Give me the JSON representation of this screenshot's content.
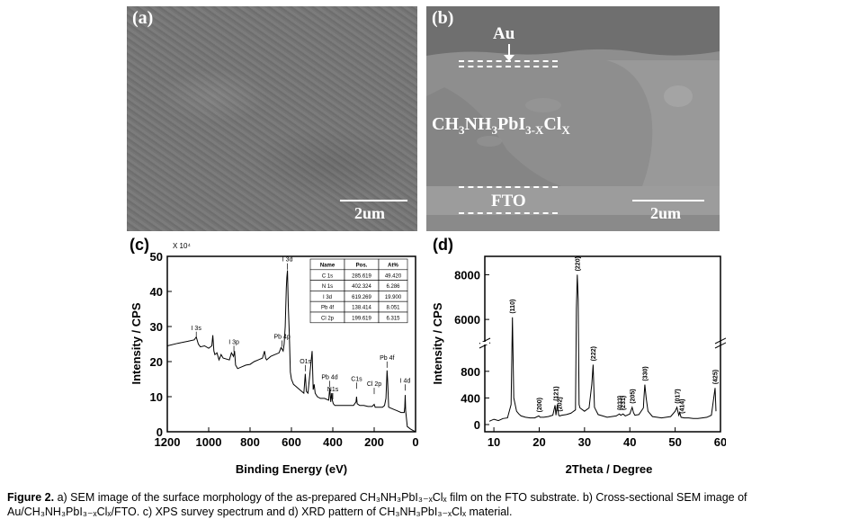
{
  "panel_a": {
    "label": "(a)",
    "scale": "2um"
  },
  "panel_b": {
    "label": "(b)",
    "scale": "2um",
    "au_label": "Au",
    "film_main": "CH",
    "film_sub1": "3",
    "film_mid": "NH",
    "film_sub2": "3",
    "film_mid2": "PbI",
    "film_sub3": "3-X",
    "film_mid3": "Cl",
    "film_sub4": "X",
    "fto_label": "FTO"
  },
  "panel_c": {
    "label": "(c)",
    "multiplier": "X 10⁴"
  },
  "panel_d": {
    "label": "(d)"
  },
  "xps_table": {
    "headers": [
      "Name",
      "Pos.",
      "At%"
    ],
    "rows": [
      [
        "C 1s",
        "285.619",
        "49.420"
      ],
      [
        "N 1s",
        "402.324",
        "6.286"
      ],
      [
        "I 3d",
        "619.269",
        "19.900"
      ],
      [
        "Pb 4f",
        "138.414",
        "8.051"
      ],
      [
        "Cl 2p",
        "199.619",
        "6.315"
      ]
    ]
  },
  "caption": {
    "lead": "Figure 2.",
    "text": " a) SEM image of the surface morphology of the as-prepared CH₃NH₃PbI₃₋ₓClₓ film on the FTO substrate. b) Cross-sectional SEM image of Au/CH₃NH₃PbI₃₋ₓClₓ/FTO. c) XPS survey spectrum and d) XRD pattern of CH₃NH₃PbI₃₋ₓClₓ material."
  },
  "chart_data": [
    {
      "type": "line",
      "panel": "(c)",
      "xlabel": "Binding Energy (eV)",
      "ylabel": "Intensity / CPS",
      "xlim": [
        1200,
        0
      ],
      "ylim": [
        0,
        50
      ],
      "x_reversed": true,
      "xticks": [
        1200,
        1000,
        800,
        600,
        400,
        200,
        0
      ],
      "yticks": [
        0,
        10,
        20,
        30,
        40,
        50
      ],
      "series": [
        {
          "x": [
            1200,
            1150,
            1100,
            1070,
            1060,
            1050,
            1040,
            1020,
            1000,
            985,
            980,
            975,
            970,
            960,
            950,
            940,
            930,
            900,
            890,
            880,
            875,
            870,
            860,
            840,
            820,
            800,
            780,
            760,
            740,
            730,
            725,
            720,
            700,
            680,
            660,
            650,
            640,
            635,
            630,
            625,
            622,
            619,
            615,
            610,
            605,
            600,
            590,
            580,
            560,
            540,
            533,
            528,
            520,
            510,
            500,
            495,
            490,
            485,
            475,
            460,
            440,
            420,
            415,
            410,
            405,
            402,
            398,
            390,
            380,
            360,
            340,
            320,
            300,
            288,
            285,
            282,
            270,
            250,
            230,
            210,
            200,
            195,
            180,
            160,
            150,
            143,
            140,
            138,
            135,
            130,
            110,
            90,
            70,
            55,
            52,
            50,
            48,
            40,
            25,
            10,
            0
          ],
          "y": [
            24.5,
            25.2,
            25.8,
            26.2,
            27.0,
            25.0,
            24.2,
            24.5,
            23.8,
            24.5,
            27.5,
            23.0,
            22.0,
            22.5,
            20.5,
            22.0,
            21.0,
            20.5,
            22.5,
            21.5,
            23.0,
            19.0,
            18.0,
            18.5,
            19.0,
            19.2,
            20.0,
            20.5,
            21.0,
            23.0,
            21.0,
            20.5,
            21.5,
            22.0,
            22.5,
            24.0,
            23.0,
            25.0,
            30.0,
            41.0,
            44.0,
            46.0,
            36.0,
            27.5,
            17.0,
            15.0,
            13.5,
            13.0,
            12.0,
            11.0,
            16.5,
            11.5,
            11.0,
            17.0,
            23.0,
            12.0,
            13.5,
            11.0,
            10.0,
            9.5,
            9.5,
            9.0,
            12.5,
            8.5,
            11.0,
            9.0,
            8.0,
            7.5,
            7.5,
            7.5,
            7.5,
            7.5,
            7.5,
            8.5,
            10.0,
            8.0,
            7.5,
            7.5,
            7.2,
            7.2,
            7.8,
            7.0,
            7.0,
            7.0,
            7.5,
            9.5,
            14.0,
            17.5,
            15.0,
            7.0,
            6.5,
            6.0,
            5.5,
            5.5,
            7.0,
            10.5,
            6.0,
            1.5,
            0.8,
            0.3,
            0.0
          ]
        }
      ],
      "annotations": [
        {
          "text": "I 3s",
          "x": 1060,
          "y": 27.5
        },
        {
          "text": "I 3p",
          "x": 878,
          "y": 23.5
        },
        {
          "text": "Pb 4p",
          "x": 645,
          "y": 25
        },
        {
          "text": "I 3d",
          "x": 619,
          "y": 47
        },
        {
          "text": "O1s",
          "x": 532,
          "y": 18
        },
        {
          "text": "Pb 4d",
          "x": 415,
          "y": 13.5
        },
        {
          "text": "N1s",
          "x": 400,
          "y": 10
        },
        {
          "text": "C1s",
          "x": 285,
          "y": 13
        },
        {
          "text": "Cl 2p",
          "x": 200,
          "y": 11.5
        },
        {
          "text": "Pb 4f",
          "x": 138,
          "y": 19
        },
        {
          "text": "I 4d",
          "x": 50,
          "y": 12.5
        }
      ]
    },
    {
      "type": "line",
      "panel": "(d)",
      "xlabel": "2Theta / Degree",
      "ylabel": "Intensity / CPS",
      "xlim": [
        8,
        60
      ],
      "xticks": [
        10,
        20,
        30,
        40,
        50,
        60
      ],
      "yticks": [
        0,
        400,
        800,
        6000,
        8000
      ],
      "broken_y_axis": true,
      "lower_ylim": [
        0,
        1000
      ],
      "upper_ylim": [
        5000,
        8500
      ],
      "series": [
        {
          "x": [
            9,
            10,
            11,
            12,
            13,
            13.8,
            14.1,
            14.4,
            15,
            15.5,
            16,
            17,
            18,
            19,
            19.9,
            20.2,
            21,
            22,
            23,
            23.5,
            23.7,
            24,
            24.3,
            24.5,
            25,
            26,
            27,
            28,
            28.2,
            28.4,
            28.6,
            28.8,
            29,
            30,
            31,
            31.6,
            31.9,
            32.2,
            33,
            34,
            35,
            36,
            37,
            37.7,
            38,
            38.5,
            39,
            40,
            40.5,
            40.8,
            41.1,
            42,
            43,
            43.1,
            43.3,
            43.6,
            44,
            45,
            46,
            47,
            48,
            49,
            50,
            50.4,
            50.8,
            51,
            51.3,
            52,
            53,
            54,
            55,
            56,
            57,
            58,
            58.8,
            59
          ],
          "y": [
            50,
            80,
            60,
            90,
            100,
            300,
            6100,
            400,
            200,
            160,
            130,
            110,
            100,
            100,
            130,
            110,
            110,
            120,
            140,
            290,
            140,
            300,
            140,
            130,
            140,
            150,
            170,
            220,
            6500,
            8000,
            6900,
            300,
            250,
            200,
            250,
            600,
            900,
            260,
            150,
            130,
            110,
            120,
            130,
            160,
            140,
            160,
            130,
            160,
            260,
            180,
            140,
            150,
            250,
            400,
            600,
            400,
            200,
            120,
            110,
            100,
            110,
            120,
            200,
            260,
            140,
            180,
            110,
            100,
            100,
            90,
            90,
            100,
            110,
            140,
            550,
            200
          ]
        }
      ],
      "peak_labels": [
        {
          "text": "(110)",
          "x": 14.1
        },
        {
          "text": "(200)",
          "x": 20.0
        },
        {
          "text": "(121)",
          "x": 23.7
        },
        {
          "text": "(202)",
          "x": 24.5
        },
        {
          "text": "(220)",
          "x": 28.4
        },
        {
          "text": "(222)",
          "x": 31.9
        },
        {
          "text": "(033)",
          "x": 37.8
        },
        {
          "text": "(231)",
          "x": 38.5
        },
        {
          "text": "(205)",
          "x": 40.5
        },
        {
          "text": "(330)",
          "x": 43.3
        },
        {
          "text": "(017)",
          "x": 50.5
        },
        {
          "text": "(414)",
          "x": 51.5
        },
        {
          "text": "(425)",
          "x": 58.8
        }
      ]
    }
  ]
}
